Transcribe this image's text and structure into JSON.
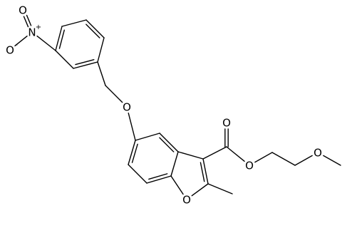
{
  "atoms": [
    {
      "label": "N",
      "charge": "+"
    },
    {
      "label": "O"
    },
    {
      "label": "O",
      "charge": "-"
    },
    {
      "label": "O"
    },
    {
      "label": "O"
    },
    {
      "label": "O"
    },
    {
      "label": "O"
    },
    {
      "label": "O"
    }
  ]
}
